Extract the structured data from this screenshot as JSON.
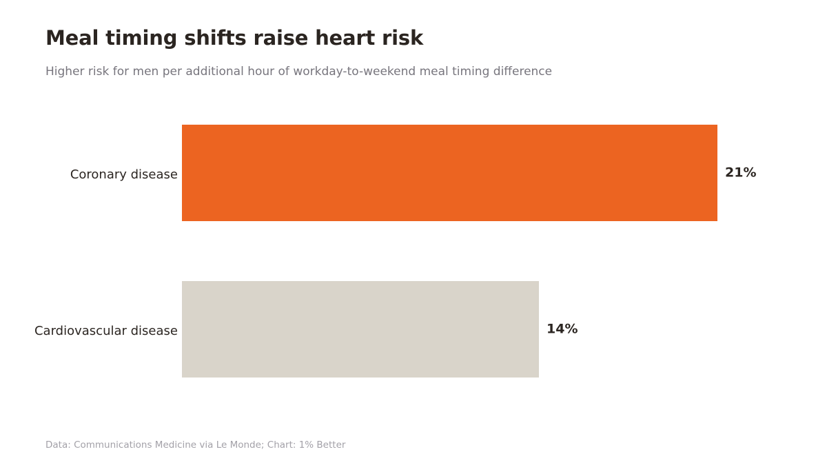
{
  "header": {
    "title": "Meal timing shifts raise heart risk",
    "subtitle": "Higher risk for men per additional hour of workday-to-weekend meal timing difference"
  },
  "footer": {
    "source": "Data: Communications Medicine via Le Monde; Chart: 1% Better"
  },
  "chart_data": {
    "type": "bar",
    "orientation": "horizontal",
    "title": "Meal timing shifts raise heart risk",
    "subtitle": "Higher risk for men per additional hour of workday-to-weekend meal timing difference",
    "xlabel": "",
    "ylabel": "",
    "categories": [
      "Coronary disease",
      "Cardiovascular disease"
    ],
    "values": [
      21,
      14
    ],
    "value_labels": [
      "21%",
      "14%"
    ],
    "unit": "%",
    "xlim": [
      0,
      21
    ],
    "colors": [
      "#ec6421",
      "#d9d4ca"
    ],
    "grid": false,
    "legend": "none"
  }
}
